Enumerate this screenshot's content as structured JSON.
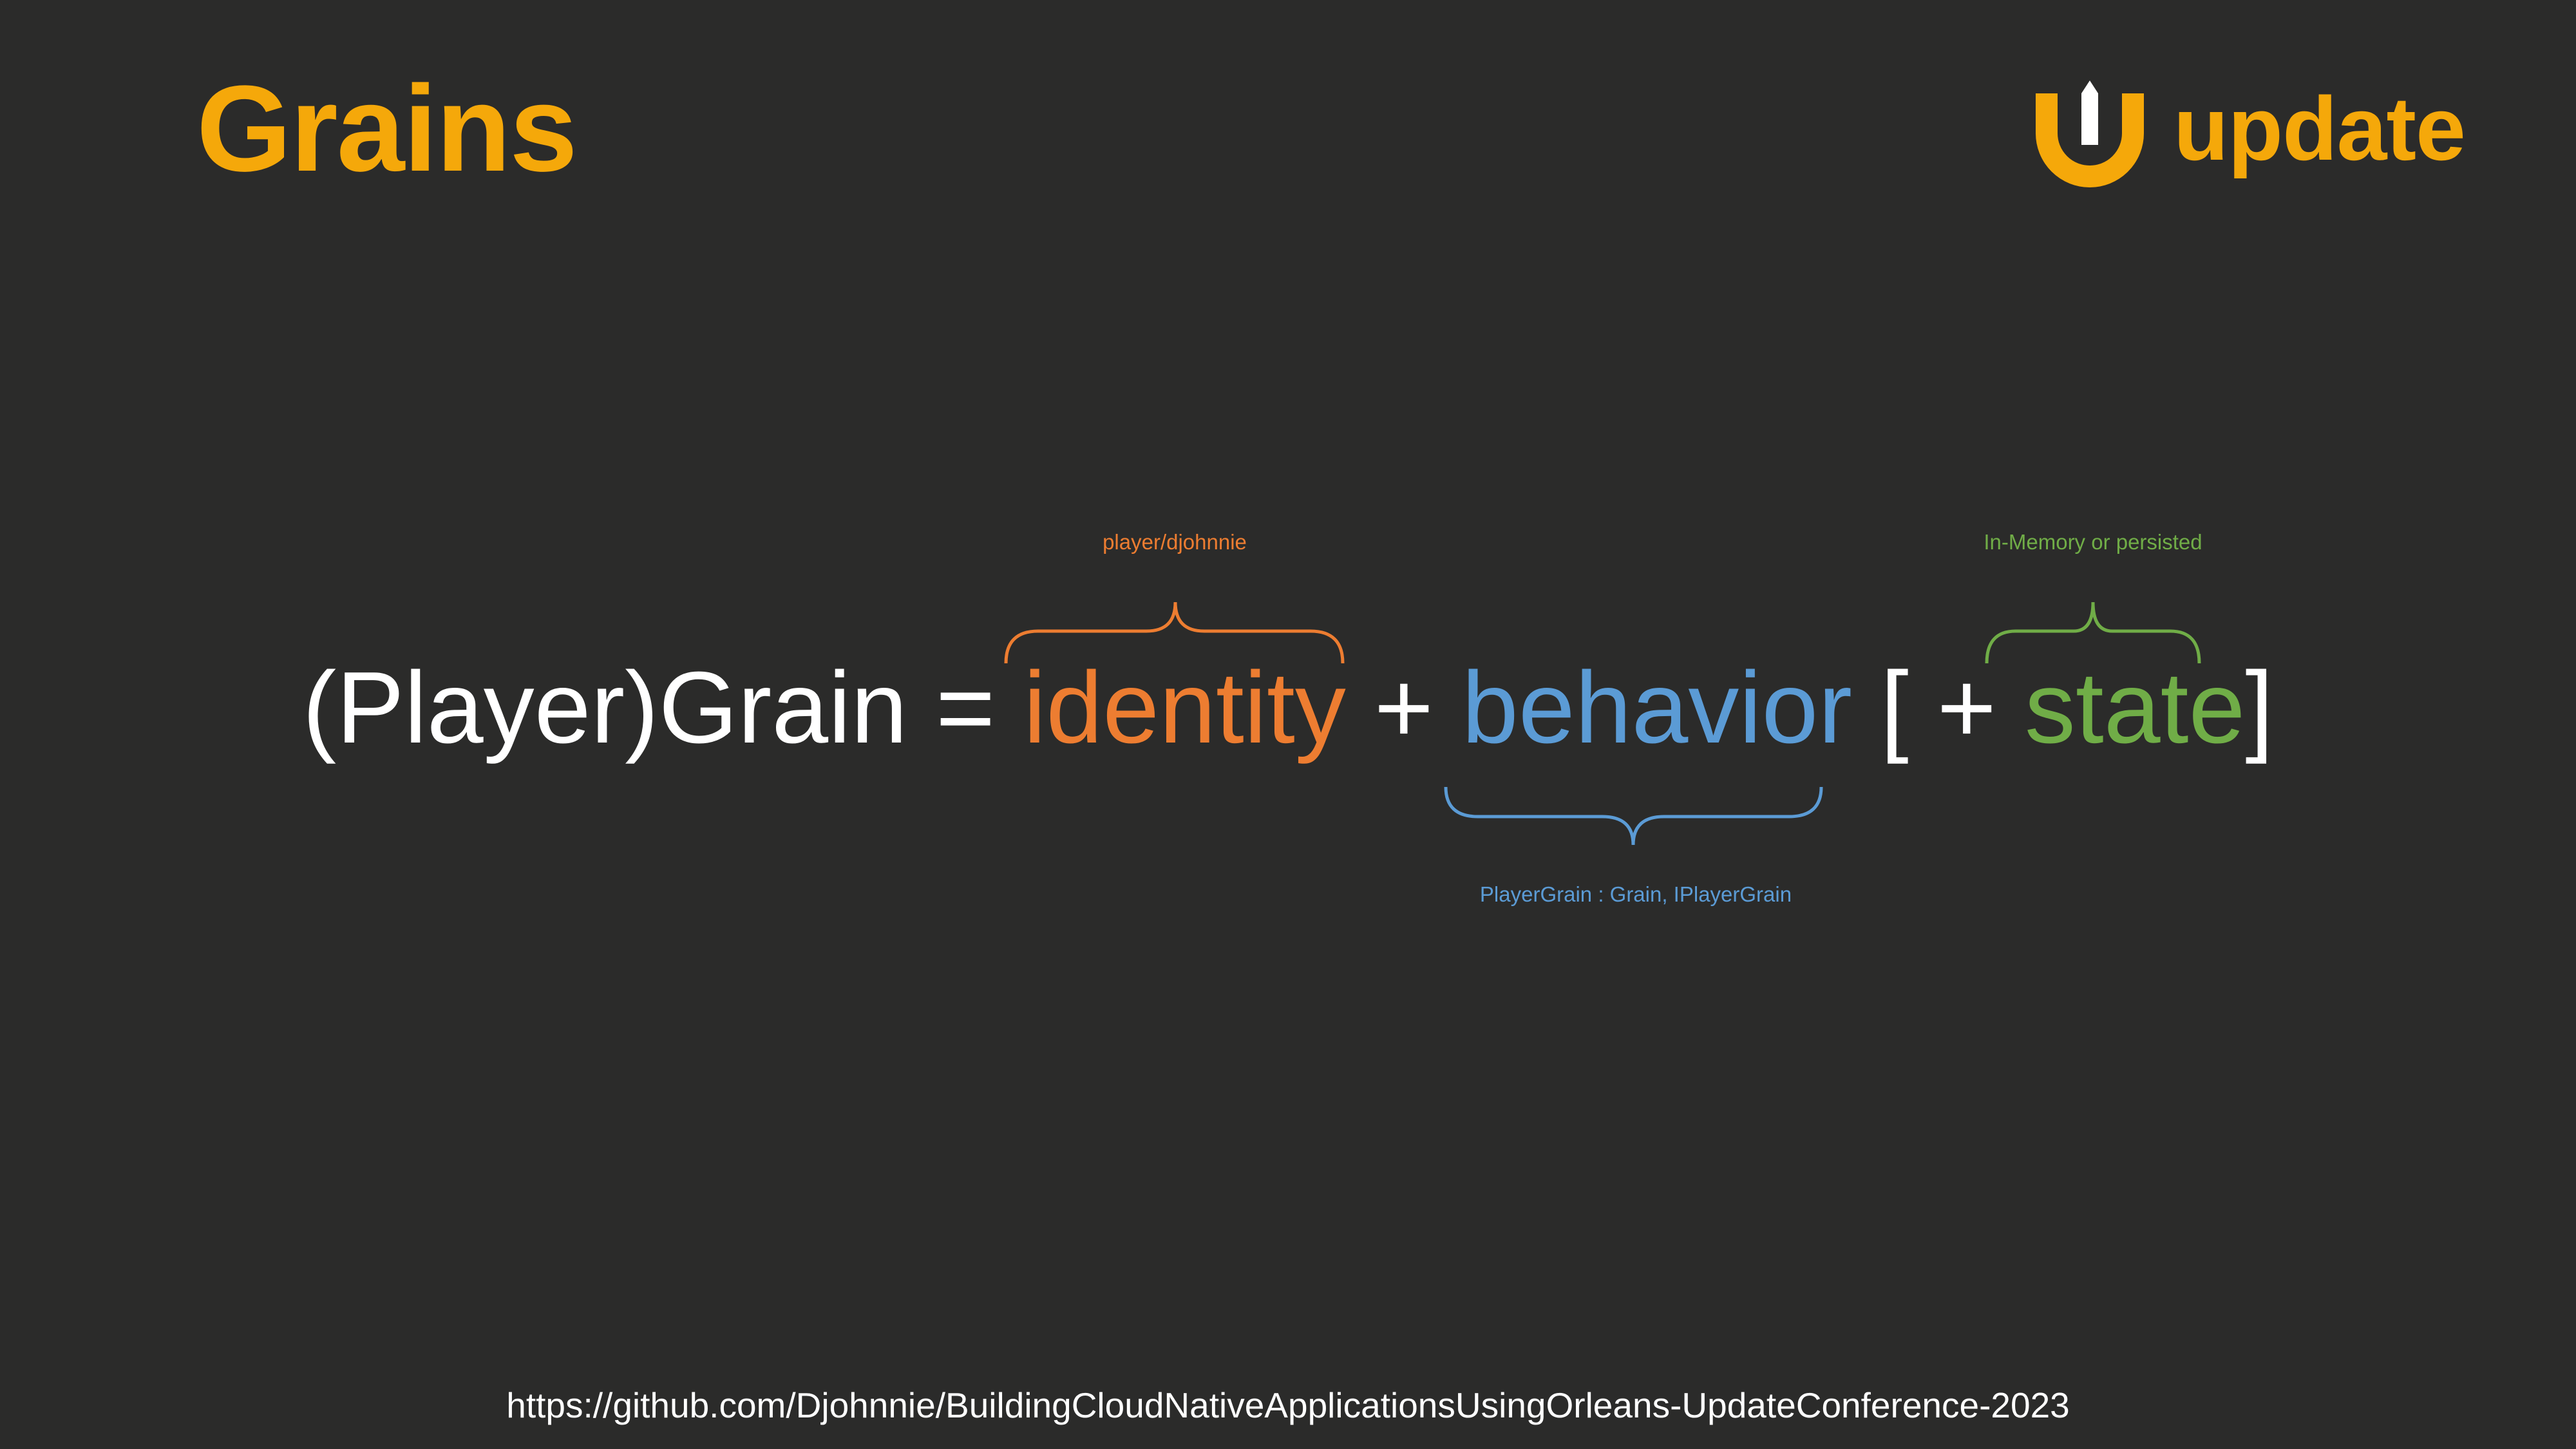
{
  "slide": {
    "title": "Grains",
    "logo_text": "update",
    "footer_url": "https://github.com/Djohnnie/BuildingCloudNativeApplicationsUsingOrleans-UpdateConference-2023"
  },
  "equation": {
    "prefix": "(Player)Grain = ",
    "identity": "identity",
    "plus1": " + ",
    "behavior": "behavior",
    "bracket_open": " [ + ",
    "state": "state",
    "bracket_close": "]"
  },
  "annotations": {
    "identity": "player/djohnnie",
    "behavior": "PlayerGrain : Grain, IPlayerGrain",
    "state": "In-Memory or persisted"
  },
  "colors": {
    "background": "#2b2b2a",
    "brand": "#f5a80a",
    "identity": "#ed7d31",
    "behavior": "#5b9bd5",
    "state": "#70ad47",
    "text": "#ffffff"
  }
}
